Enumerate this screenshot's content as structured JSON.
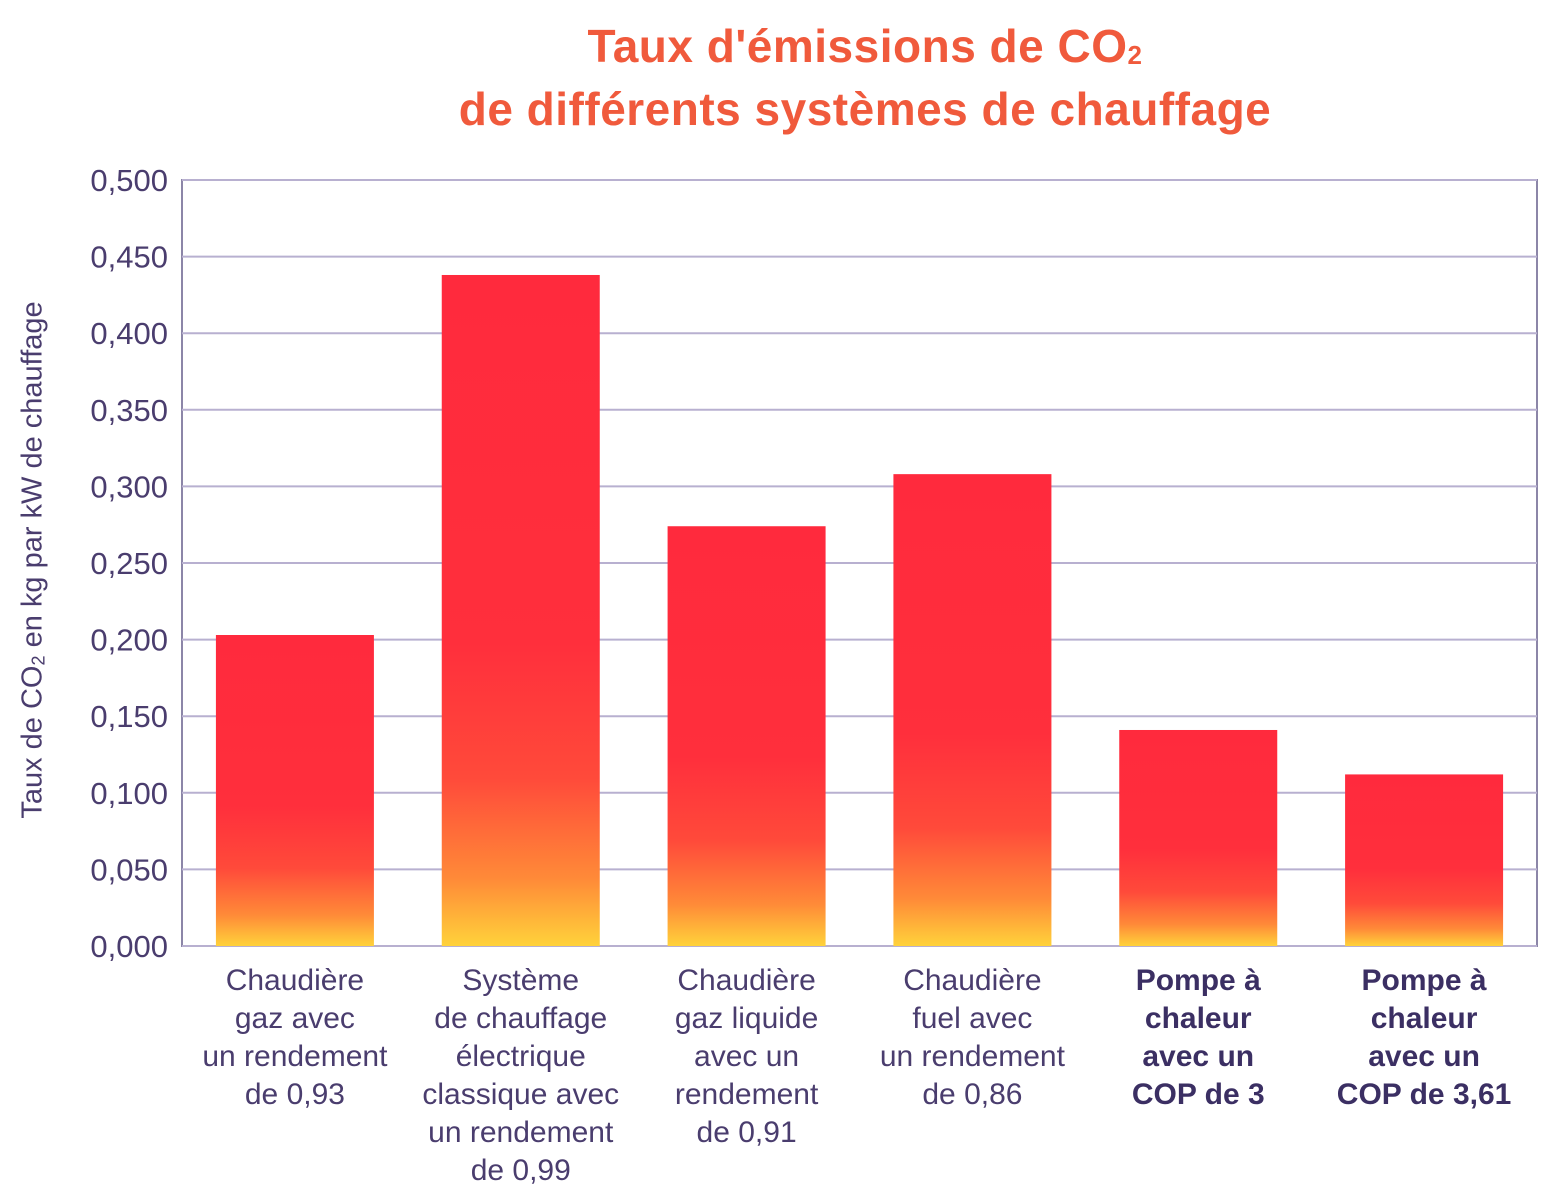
{
  "chart_data": {
    "type": "bar",
    "title_line1": "Taux d'émissions de CO",
    "title_sub": "2",
    "title_line2": "de différents systèmes de chauffage",
    "ylabel_before": "Taux de CO",
    "ylabel_sub": "2",
    "ylabel_after": " en kg par kW de chauffage",
    "ylim": [
      0,
      0.5
    ],
    "yticks": [
      "0,000",
      "0,050",
      "0,100",
      "0,150",
      "0,200",
      "0,250",
      "0,300",
      "0,350",
      "0,400",
      "0,450",
      "0,500"
    ],
    "grid": true,
    "categories": [
      {
        "lines": [
          "Chaudière",
          "gaz avec",
          "un rendement",
          "de 0,93"
        ],
        "bold": false
      },
      {
        "lines": [
          "Système",
          "de chauffage",
          "électrique",
          "classique avec",
          "un rendement",
          "de 0,99"
        ],
        "bold": false
      },
      {
        "lines": [
          "Chaudière",
          "gaz liquide",
          "avec un",
          "rendement",
          "de 0,91"
        ],
        "bold": false
      },
      {
        "lines": [
          "Chaudière",
          "fuel avec",
          "un rendement",
          "de 0,86"
        ],
        "bold": false
      },
      {
        "lines": [
          "Pompe à",
          "chaleur",
          "avec un",
          "COP de 3"
        ],
        "bold": true
      },
      {
        "lines": [
          "Pompe à",
          "chaleur",
          "avec un",
          "COP de 3,61"
        ],
        "bold": true
      }
    ],
    "values": [
      0.203,
      0.438,
      0.274,
      0.308,
      0.141,
      0.112
    ],
    "colors": {
      "bar_top": "#ff2a3d",
      "bar_mid": "#ff4a3a",
      "bar_bottom": "#ffcc33",
      "grid": "#b8b0d0",
      "axis": "#8c86a8",
      "tick_text": "#4a3d6e",
      "title": "#f05a3c"
    }
  }
}
